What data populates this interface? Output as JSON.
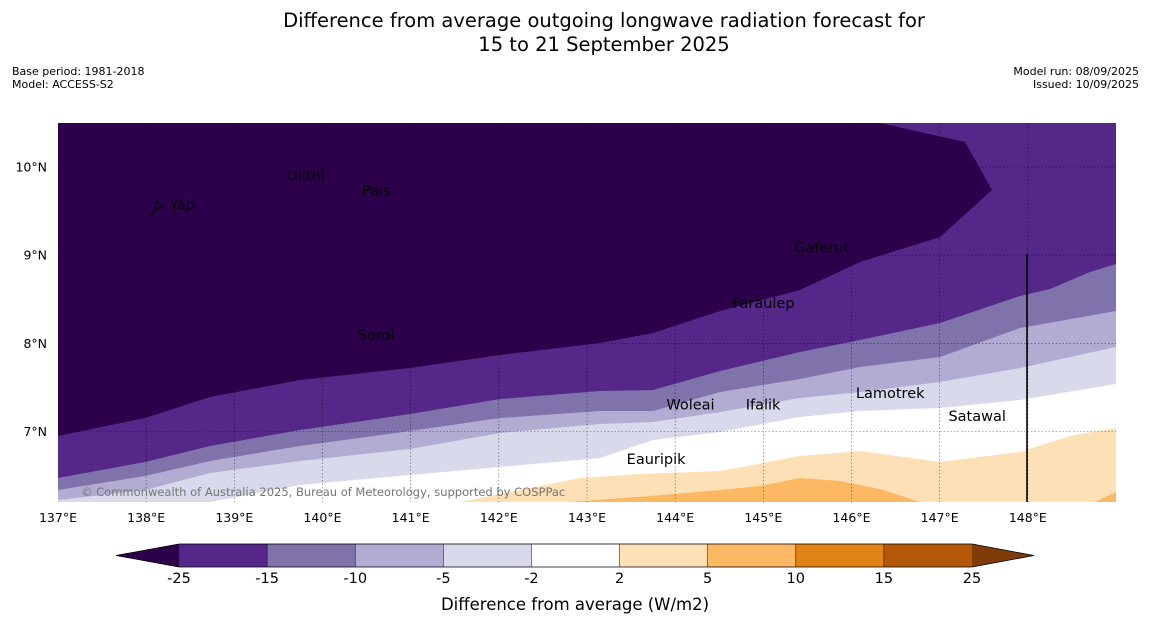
{
  "title": {
    "line1": "Difference from average outgoing longwave radiation forecast for",
    "line2": "15 to 21 September 2025"
  },
  "meta_left": {
    "base_period": "Base period: 1981-2018",
    "model": "Model: ACCESS-S2"
  },
  "meta_right": {
    "model_run": "Model run: 08/09/2025",
    "issued": "Issued: 10/09/2025"
  },
  "map": {
    "lon_range": [
      137,
      149
    ],
    "lat_range": [
      6.2,
      10.5
    ],
    "x_ticks": [
      {
        "lon": 137,
        "label": "137°E"
      },
      {
        "lon": 138,
        "label": "138°E"
      },
      {
        "lon": 139,
        "label": "139°E"
      },
      {
        "lon": 140,
        "label": "140°E"
      },
      {
        "lon": 141,
        "label": "141°E"
      },
      {
        "lon": 142,
        "label": "142°E"
      },
      {
        "lon": 143,
        "label": "143°E"
      },
      {
        "lon": 144,
        "label": "144°E"
      },
      {
        "lon": 145,
        "label": "145°E"
      },
      {
        "lon": 146,
        "label": "146°E"
      },
      {
        "lon": 147,
        "label": "147°E"
      },
      {
        "lon": 148,
        "label": "148°E"
      }
    ],
    "y_ticks": [
      {
        "lat": 10,
        "label": "10°N"
      },
      {
        "lat": 9,
        "label": "9°N"
      },
      {
        "lat": 8,
        "label": "8°N"
      },
      {
        "lat": 7,
        "label": "7°N"
      }
    ],
    "places": [
      {
        "name": "Yap",
        "lon": 138.2,
        "lat": 9.52,
        "dx": 6
      },
      {
        "name": "Ulithi",
        "lon": 139.6,
        "lat": 9.85,
        "dx": 0
      },
      {
        "name": "Pais",
        "lon": 140.45,
        "lat": 9.68,
        "dx": 0
      },
      {
        "name": "Gaferut",
        "lon": 145.35,
        "lat": 9.03,
        "dx": 0
      },
      {
        "name": "Faraulep",
        "lon": 144.65,
        "lat": 8.4,
        "dx": 0
      },
      {
        "name": "Sorol",
        "lon": 140.4,
        "lat": 8.04,
        "dx": 0
      },
      {
        "name": "Woleai",
        "lon": 143.9,
        "lat": 7.25,
        "dx": 0
      },
      {
        "name": "Ifalik",
        "lon": 144.8,
        "lat": 7.25,
        "dx": 0
      },
      {
        "name": "Lamotrek",
        "lon": 146.05,
        "lat": 7.38,
        "dx": 0
      },
      {
        "name": "Satawal",
        "lon": 147.1,
        "lat": 7.12,
        "dx": 0
      },
      {
        "name": "Eauripik",
        "lon": 143.45,
        "lat": 6.63,
        "dx": 0
      }
    ],
    "copyright": "© Commonwealth of Australia 2025, Bureau of Meteorology, supported by COSPPac"
  },
  "colorbar": {
    "label": "Difference from average (W/m2)",
    "ticks": [
      "-25",
      "-15",
      "-10",
      "-5",
      "-2",
      "2",
      "5",
      "10",
      "15",
      "25"
    ],
    "colors": {
      "below": "#2d004b",
      "bins": [
        "#542788",
        "#8073ac",
        "#b2abd2",
        "#d8daeb",
        "#ffffff",
        "#fee0b6",
        "#fdb863",
        "#e08214",
        "#b35806"
      ],
      "above": "#7f3b08"
    }
  }
}
